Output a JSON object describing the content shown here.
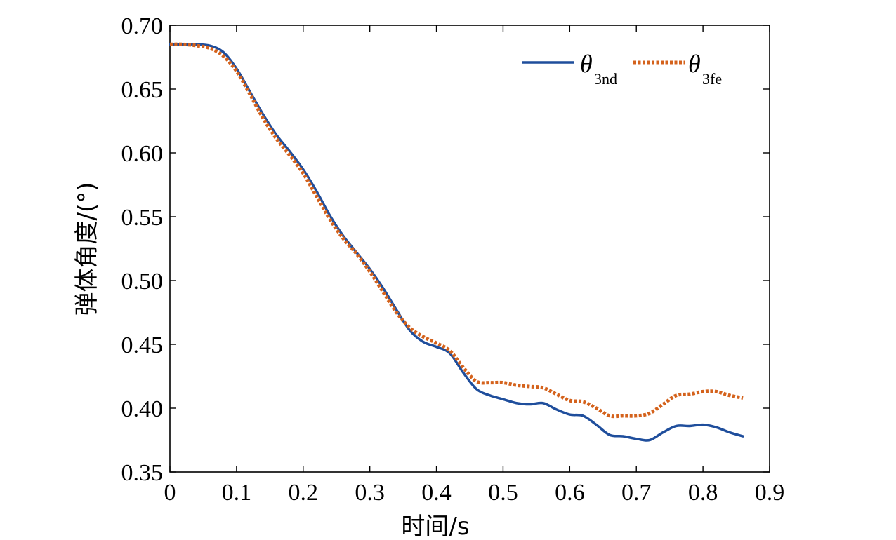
{
  "chart_data": {
    "type": "line",
    "xlabel": "时间/s",
    "ylabel": "弹体角度/(°)",
    "xlim": [
      0,
      0.9
    ],
    "ylim": [
      0.35,
      0.7
    ],
    "xticks": [
      "0",
      "0.1",
      "0.2",
      "0.3",
      "0.4",
      "0.5",
      "0.6",
      "0.7",
      "0.8",
      "0.9"
    ],
    "yticks": [
      "0.35",
      "0.40",
      "0.45",
      "0.50",
      "0.55",
      "0.60",
      "0.65",
      "0.70"
    ],
    "grid": false,
    "legend_position": "top-right",
    "series": [
      {
        "symbol": "θ",
        "subscript": "3nd",
        "color": "#1f4e9c",
        "style": "solid",
        "x": [
          0,
          0.02,
          0.04,
          0.06,
          0.08,
          0.1,
          0.12,
          0.14,
          0.16,
          0.18,
          0.2,
          0.22,
          0.24,
          0.26,
          0.28,
          0.3,
          0.32,
          0.34,
          0.36,
          0.38,
          0.4,
          0.42,
          0.44,
          0.46,
          0.48,
          0.5,
          0.52,
          0.54,
          0.56,
          0.58,
          0.6,
          0.62,
          0.64,
          0.66,
          0.68,
          0.7,
          0.72,
          0.74,
          0.76,
          0.78,
          0.8,
          0.82,
          0.84,
          0.86
        ],
        "y": [
          0.685,
          0.685,
          0.685,
          0.684,
          0.679,
          0.666,
          0.648,
          0.63,
          0.614,
          0.601,
          0.587,
          0.57,
          0.551,
          0.535,
          0.522,
          0.509,
          0.494,
          0.477,
          0.461,
          0.452,
          0.448,
          0.443,
          0.428,
          0.415,
          0.41,
          0.407,
          0.404,
          0.403,
          0.404,
          0.399,
          0.395,
          0.394,
          0.387,
          0.379,
          0.378,
          0.376,
          0.375,
          0.381,
          0.386,
          0.386,
          0.387,
          0.385,
          0.381,
          0.378
        ]
      },
      {
        "symbol": "θ",
        "subscript": "3fe",
        "color": "#d4621c",
        "style": "dotted",
        "x": [
          0,
          0.02,
          0.04,
          0.06,
          0.08,
          0.1,
          0.12,
          0.14,
          0.16,
          0.18,
          0.2,
          0.22,
          0.24,
          0.26,
          0.28,
          0.3,
          0.32,
          0.34,
          0.36,
          0.38,
          0.4,
          0.42,
          0.44,
          0.46,
          0.48,
          0.5,
          0.52,
          0.54,
          0.56,
          0.58,
          0.6,
          0.62,
          0.64,
          0.66,
          0.68,
          0.7,
          0.72,
          0.74,
          0.76,
          0.78,
          0.8,
          0.82,
          0.84,
          0.86
        ],
        "y": [
          0.685,
          0.685,
          0.684,
          0.682,
          0.676,
          0.664,
          0.646,
          0.627,
          0.611,
          0.598,
          0.584,
          0.566,
          0.548,
          0.533,
          0.521,
          0.507,
          0.491,
          0.475,
          0.463,
          0.456,
          0.451,
          0.445,
          0.432,
          0.421,
          0.42,
          0.42,
          0.418,
          0.417,
          0.416,
          0.411,
          0.406,
          0.405,
          0.4,
          0.394,
          0.394,
          0.394,
          0.396,
          0.403,
          0.41,
          0.411,
          0.413,
          0.413,
          0.41,
          0.408
        ]
      }
    ]
  }
}
